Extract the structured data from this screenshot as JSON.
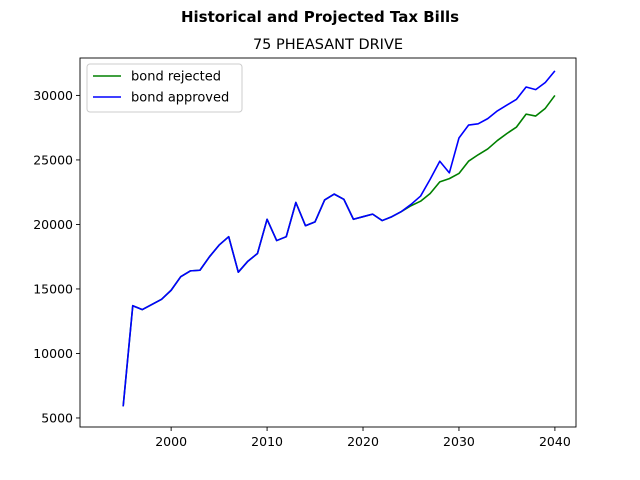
{
  "chart_data": {
    "type": "line",
    "suptitle": "Historical and Projected Tax Bills",
    "title": "75 PHEASANT DRIVE",
    "xlabel": "",
    "ylabel": "",
    "xlim": [
      1990.5,
      2042.2
    ],
    "ylim": [
      4300,
      32900
    ],
    "xticks": [
      2000,
      2010,
      2020,
      2030,
      2040
    ],
    "yticks": [
      5000,
      10000,
      15000,
      20000,
      25000,
      30000
    ],
    "grid": false,
    "legend_position": "upper-left",
    "series": [
      {
        "name": "bond rejected",
        "color": "#008000",
        "x": [
          1995,
          1996,
          1997,
          1998,
          1999,
          2000,
          2001,
          2002,
          2003,
          2004,
          2005,
          2006,
          2007,
          2008,
          2009,
          2010,
          2011,
          2012,
          2013,
          2014,
          2015,
          2016,
          2017,
          2018,
          2019,
          2020,
          2021,
          2022,
          2023,
          2024,
          2025,
          2026,
          2027,
          2028,
          2029,
          2030,
          2031,
          2032,
          2033,
          2034,
          2035,
          2036,
          2037,
          2038,
          2039,
          2040
        ],
        "values": [
          5900,
          13700,
          13400,
          13800,
          14200,
          14900,
          15950,
          16400,
          16450,
          17500,
          18400,
          19050,
          16300,
          17150,
          17750,
          20400,
          18750,
          19050,
          21700,
          19900,
          20200,
          21900,
          22350,
          21950,
          20400,
          20600,
          20800,
          20300,
          20600,
          21000,
          21450,
          21800,
          22400,
          23300,
          23550,
          23950,
          24900,
          25400,
          25850,
          26500,
          27050,
          27550,
          28550,
          28400,
          29000,
          30000
        ]
      },
      {
        "name": "bond approved",
        "color": "#0000ff",
        "x": [
          1995,
          1996,
          1997,
          1998,
          1999,
          2000,
          2001,
          2002,
          2003,
          2004,
          2005,
          2006,
          2007,
          2008,
          2009,
          2010,
          2011,
          2012,
          2013,
          2014,
          2015,
          2016,
          2017,
          2018,
          2019,
          2020,
          2021,
          2022,
          2023,
          2024,
          2025,
          2026,
          2027,
          2028,
          2029,
          2030,
          2031,
          2032,
          2033,
          2034,
          2035,
          2036,
          2037,
          2038,
          2039,
          2040
        ],
        "values": [
          5900,
          13700,
          13400,
          13800,
          14200,
          14900,
          15950,
          16400,
          16450,
          17500,
          18400,
          19050,
          16300,
          17150,
          17750,
          20400,
          18750,
          19050,
          21700,
          19900,
          20200,
          21900,
          22350,
          21950,
          20400,
          20600,
          20800,
          20300,
          20600,
          21000,
          21550,
          22200,
          23500,
          24900,
          24000,
          26700,
          27700,
          27800,
          28200,
          28800,
          29250,
          29700,
          30650,
          30450,
          31000,
          31900
        ]
      }
    ]
  }
}
